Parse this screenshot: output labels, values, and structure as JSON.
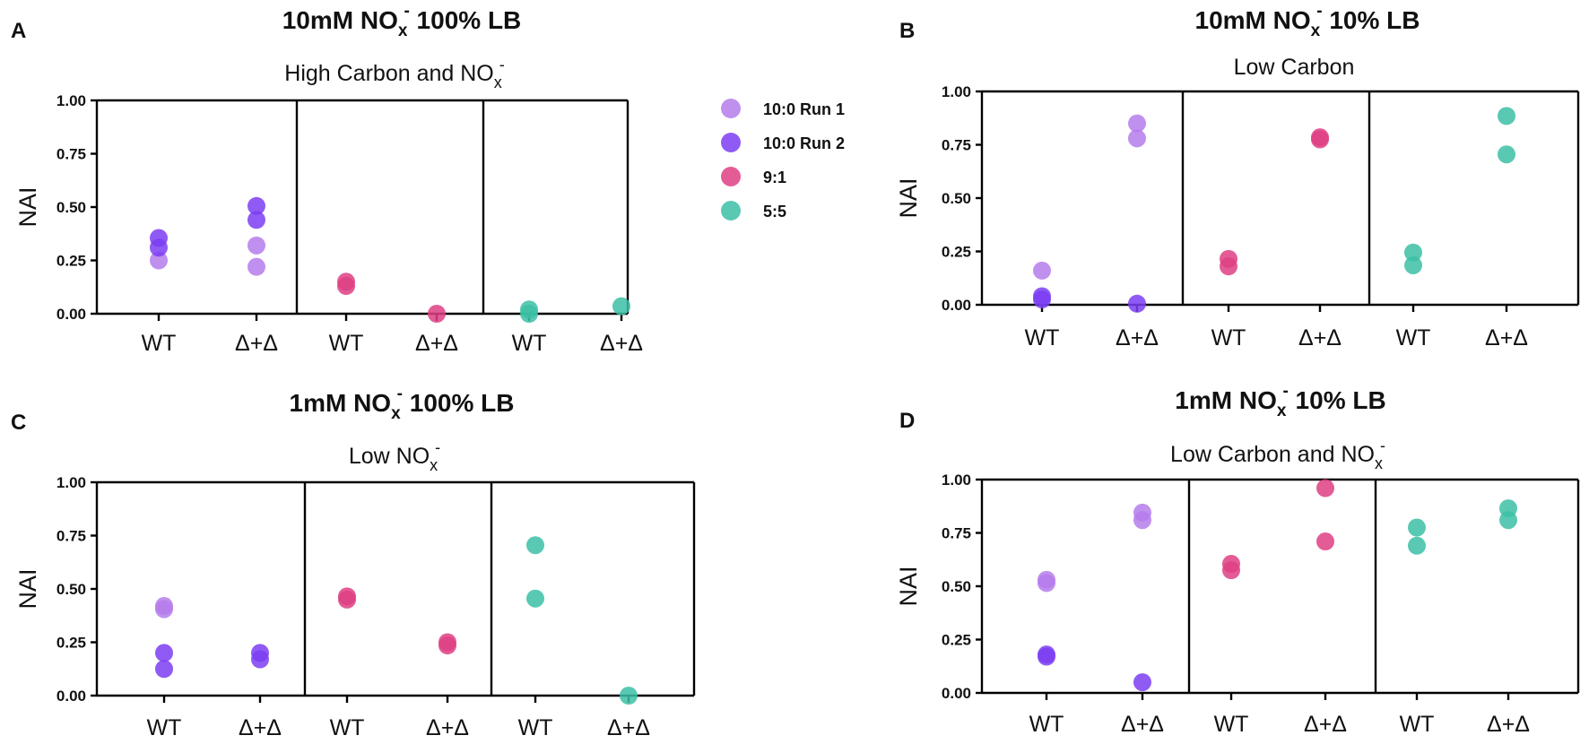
{
  "colors": {
    "run1": "#b57ceb",
    "run2": "#7b3ef2",
    "r91": "#de3f84",
    "r55": "#3cc0a6"
  },
  "legend": {
    "items": [
      {
        "label": "10:0 Run 1",
        "color_key": "run1"
      },
      {
        "label": "10:0 Run 2",
        "color_key": "run2"
      },
      {
        "label": "9:1",
        "color_key": "r91"
      },
      {
        "label": "5:5",
        "color_key": "r55"
      }
    ]
  },
  "chart_data": [
    {
      "id": "A",
      "type": "scatter",
      "title": "10mM NO",
      "title_sub": "x",
      "title_sup": "-",
      "title_rest": " 100% LB",
      "subtitle": "High Carbon and NO",
      "subtitle_sub": "x",
      "subtitle_sup": "-",
      "ylabel": "NAI",
      "ylim": [
        0,
        1
      ],
      "yticks": [
        "0.00",
        "0.25",
        "0.50",
        "0.75",
        "1.00"
      ],
      "categories": [
        "WT",
        "Δ+Δ",
        "WT",
        "Δ+Δ",
        "WT",
        "Δ+Δ"
      ],
      "points": [
        {
          "cat": 0,
          "y": 0.25,
          "series": "run1"
        },
        {
          "cat": 0,
          "y": 0.31,
          "series": "run2"
        },
        {
          "cat": 0,
          "y": 0.355,
          "series": "run2"
        },
        {
          "cat": 1,
          "y": 0.22,
          "series": "run1"
        },
        {
          "cat": 1,
          "y": 0.32,
          "series": "run1"
        },
        {
          "cat": 1,
          "y": 0.44,
          "series": "run2"
        },
        {
          "cat": 1,
          "y": 0.505,
          "series": "run2"
        },
        {
          "cat": 2,
          "y": 0.13,
          "series": "r91"
        },
        {
          "cat": 2,
          "y": 0.15,
          "series": "r91"
        },
        {
          "cat": 3,
          "y": 0.0,
          "series": "r91"
        },
        {
          "cat": 4,
          "y": 0.0,
          "series": "r55"
        },
        {
          "cat": 4,
          "y": 0.02,
          "series": "r55"
        },
        {
          "cat": 5,
          "y": 0.035,
          "series": "r55"
        }
      ]
    },
    {
      "id": "B",
      "type": "scatter",
      "title": "10mM NO",
      "title_sub": "x",
      "title_sup": "-",
      "title_rest": " 10% LB",
      "subtitle": "Low Carbon",
      "subtitle_sub": "",
      "subtitle_sup": "",
      "ylabel": "NAI",
      "ylim": [
        0,
        1
      ],
      "yticks": [
        "0.00",
        "0.25",
        "0.50",
        "0.75",
        "1.00"
      ],
      "categories": [
        "WT",
        "Δ+Δ",
        "WT",
        "Δ+Δ",
        "WT",
        "Δ+Δ"
      ],
      "points": [
        {
          "cat": 0,
          "y": 0.16,
          "series": "run1"
        },
        {
          "cat": 0,
          "y": 0.025,
          "series": "run2"
        },
        {
          "cat": 0,
          "y": 0.04,
          "series": "run2"
        },
        {
          "cat": 1,
          "y": 0.85,
          "series": "run1"
        },
        {
          "cat": 1,
          "y": 0.78,
          "series": "run1"
        },
        {
          "cat": 1,
          "y": 0.005,
          "series": "run2"
        },
        {
          "cat": 2,
          "y": 0.215,
          "series": "r91"
        },
        {
          "cat": 2,
          "y": 0.18,
          "series": "r91"
        },
        {
          "cat": 3,
          "y": 0.785,
          "series": "r91"
        },
        {
          "cat": 3,
          "y": 0.775,
          "series": "r91"
        },
        {
          "cat": 4,
          "y": 0.245,
          "series": "r55"
        },
        {
          "cat": 4,
          "y": 0.185,
          "series": "r55"
        },
        {
          "cat": 5,
          "y": 0.885,
          "series": "r55"
        },
        {
          "cat": 5,
          "y": 0.705,
          "series": "r55"
        }
      ]
    },
    {
      "id": "C",
      "type": "scatter",
      "title": "1mM NO",
      "title_sub": "x",
      "title_sup": "-",
      "title_rest": " 100% LB",
      "subtitle": "Low NO",
      "subtitle_sub": "x",
      "subtitle_sup": "-",
      "ylabel": "NAI",
      "ylim": [
        0,
        1
      ],
      "yticks": [
        "0.00",
        "0.25",
        "0.50",
        "0.75",
        "1.00"
      ],
      "categories": [
        "WT",
        "Δ+Δ",
        "WT",
        "Δ+Δ",
        "WT",
        "Δ+Δ"
      ],
      "points": [
        {
          "cat": 0,
          "y": 0.42,
          "series": "run1"
        },
        {
          "cat": 0,
          "y": 0.405,
          "series": "run1"
        },
        {
          "cat": 0,
          "y": 0.2,
          "series": "run2"
        },
        {
          "cat": 0,
          "y": 0.125,
          "series": "run2"
        },
        {
          "cat": 1,
          "y": 0.2,
          "series": "run2"
        },
        {
          "cat": 1,
          "y": 0.17,
          "series": "run2"
        },
        {
          "cat": 2,
          "y": 0.465,
          "series": "r91"
        },
        {
          "cat": 2,
          "y": 0.45,
          "series": "r91"
        },
        {
          "cat": 3,
          "y": 0.25,
          "series": "r91"
        },
        {
          "cat": 3,
          "y": 0.235,
          "series": "r91"
        },
        {
          "cat": 4,
          "y": 0.705,
          "series": "r55"
        },
        {
          "cat": 4,
          "y": 0.455,
          "series": "r55"
        },
        {
          "cat": 5,
          "y": 0.0,
          "series": "r55"
        }
      ]
    },
    {
      "id": "D",
      "type": "scatter",
      "title": "1mM NO",
      "title_sub": "x",
      "title_sup": "-",
      "title_rest": " 10% LB",
      "subtitle": "Low Carbon and NO",
      "subtitle_sub": "x",
      "subtitle_sup": "-",
      "ylabel": "NAI",
      "ylim": [
        0,
        1
      ],
      "yticks": [
        "0.00",
        "0.25",
        "0.50",
        "0.75",
        "1.00"
      ],
      "categories": [
        "WT",
        "Δ+Δ",
        "WT",
        "Δ+Δ",
        "WT",
        "Δ+Δ"
      ],
      "points": [
        {
          "cat": 0,
          "y": 0.53,
          "series": "run1"
        },
        {
          "cat": 0,
          "y": 0.515,
          "series": "run1"
        },
        {
          "cat": 0,
          "y": 0.18,
          "series": "run2"
        },
        {
          "cat": 0,
          "y": 0.17,
          "series": "run2"
        },
        {
          "cat": 1,
          "y": 0.845,
          "series": "run1"
        },
        {
          "cat": 1,
          "y": 0.81,
          "series": "run1"
        },
        {
          "cat": 1,
          "y": 0.05,
          "series": "run2"
        },
        {
          "cat": 2,
          "y": 0.605,
          "series": "r91"
        },
        {
          "cat": 2,
          "y": 0.575,
          "series": "r91"
        },
        {
          "cat": 3,
          "y": 0.96,
          "series": "r91"
        },
        {
          "cat": 3,
          "y": 0.71,
          "series": "r91"
        },
        {
          "cat": 4,
          "y": 0.775,
          "series": "r55"
        },
        {
          "cat": 4,
          "y": 0.69,
          "series": "r55"
        },
        {
          "cat": 5,
          "y": 0.865,
          "series": "r55"
        },
        {
          "cat": 5,
          "y": 0.81,
          "series": "r55"
        }
      ]
    }
  ]
}
